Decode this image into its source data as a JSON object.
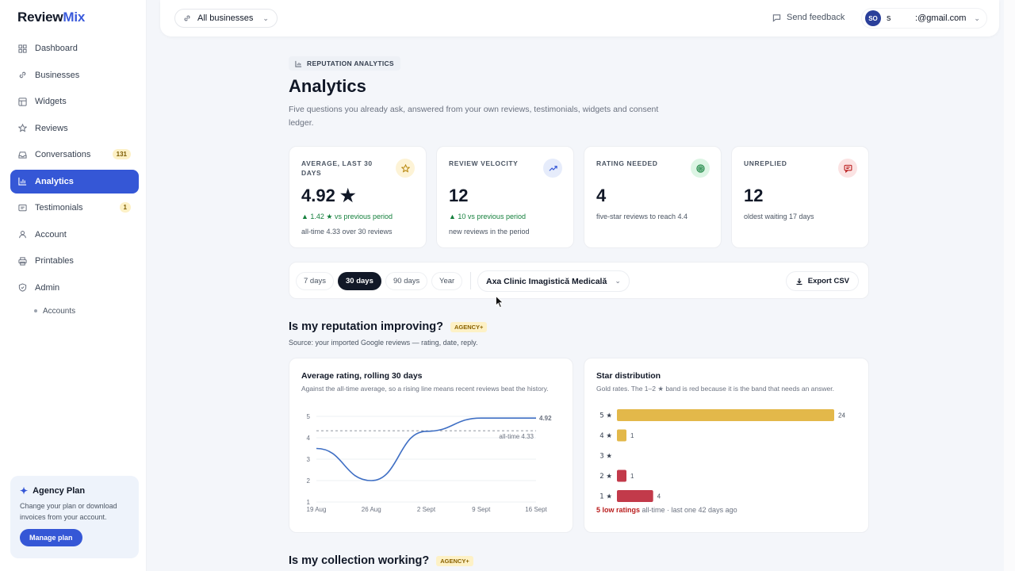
{
  "brand": {
    "part1": "Review",
    "part2": "Mix"
  },
  "sidebar": {
    "items": [
      {
        "label": "Dashboard",
        "icon": "grid-icon"
      },
      {
        "label": "Businesses",
        "icon": "link-icon"
      },
      {
        "label": "Widgets",
        "icon": "layout-icon"
      },
      {
        "label": "Reviews",
        "icon": "star-icon"
      },
      {
        "label": "Conversations",
        "icon": "inbox-icon",
        "badge": "131"
      },
      {
        "label": "Analytics",
        "icon": "bar-chart-icon",
        "active": true
      },
      {
        "label": "Testimonials",
        "icon": "quote-icon",
        "badge": "1"
      },
      {
        "label": "Account",
        "icon": "user-icon"
      },
      {
        "label": "Printables",
        "icon": "printer-icon"
      },
      {
        "label": "Admin",
        "icon": "shield-icon"
      }
    ],
    "sub_items": [
      {
        "label": "Accounts"
      }
    ],
    "plan": {
      "title": "Agency Plan",
      "text": "Change your plan or download invoices from your account.",
      "button": "Manage plan"
    }
  },
  "topbar": {
    "business_select": "All businesses",
    "feedback": "Send feedback",
    "user_initials": "SO",
    "user_email": "s          :@gmail.com"
  },
  "header": {
    "eyebrow": "REPUTATION ANALYTICS",
    "title": "Analytics",
    "description": "Five questions you already ask, answered from your own reviews, testimonials, widgets and consent ledger."
  },
  "kpis": [
    {
      "label": "AVERAGE, LAST 30 DAYS",
      "value": "4.92 ★",
      "trend": "▲ 1.42 ★ vs previous period",
      "sub": "all-time 4.33 over 30 reviews",
      "icon": "star-icon",
      "icon_bg": "#fdf3d6",
      "icon_color": "#b7860b"
    },
    {
      "label": "REVIEW VELOCITY",
      "value": "12",
      "trend": "▲ 10 vs previous period",
      "sub": "new reviews in the period",
      "icon": "trending-up-icon",
      "icon_bg": "#e6ecfb",
      "icon_color": "#3557d6"
    },
    {
      "label": "RATING NEEDED",
      "value": "4",
      "trend": "",
      "sub": "five-star reviews to reach 4.4",
      "icon": "target-icon",
      "icon_bg": "#dcf5e4",
      "icon_color": "#15803d"
    },
    {
      "label": "UNREPLIED",
      "value": "12",
      "trend": "",
      "sub": "oldest waiting 17 days",
      "icon": "message-icon",
      "icon_bg": "#fbe3e3",
      "icon_color": "#b91c1c"
    }
  ],
  "filters": {
    "ranges": [
      "7 days",
      "30 days",
      "90 days",
      "Year"
    ],
    "active_range": "30 days",
    "business": "Axa Clinic Imagistică Medicală",
    "export": "Export CSV"
  },
  "section1": {
    "title": "Is my reputation improving?",
    "tag": "AGENCY+",
    "source": "Source: your imported Google reviews — rating, date, reply."
  },
  "section2": {
    "title": "Is my collection working?",
    "tag": "AGENCY+"
  },
  "rating_card": {
    "title": "Average rating, rolling 30 days",
    "subtitle": "Against the all-time average, so a rising line means recent reviews beat the history."
  },
  "star_card": {
    "title": "Star distribution",
    "subtitle": "Gold rates. The 1–2 ★ band is red because it is the band that needs an answer.",
    "footer_strong": "5 low ratings",
    "footer_rest": " all-time · last one 42 days ago"
  },
  "chart_data": [
    {
      "type": "line",
      "title": "Average rating, rolling 30 days",
      "x": [
        "19 Aug",
        "26 Aug",
        "2 Sept",
        "9 Sept",
        "16 Sept"
      ],
      "points": [
        {
          "x": "19 Aug",
          "y": 3.5
        },
        {
          "x": "26 Aug",
          "y": 2.0
        },
        {
          "x": "2 Sept",
          "y": 4.3
        },
        {
          "x": "9 Sept",
          "y": 4.92
        },
        {
          "x": "16 Sept",
          "y": 4.92
        }
      ],
      "ylim": [
        1,
        5
      ],
      "yticks": [
        1,
        2,
        3,
        4,
        5
      ],
      "end_label": "4.92",
      "reference": {
        "value": 4.33,
        "label": "all-time 4.33"
      },
      "grid": true,
      "color": "#3f6fc4"
    },
    {
      "type": "bar",
      "orientation": "horizontal",
      "title": "Star distribution",
      "categories": [
        "5 ★",
        "4 ★",
        "3 ★",
        "2 ★",
        "1 ★"
      ],
      "values": [
        24,
        1,
        0,
        1,
        4
      ],
      "colors": [
        "#e3b84a",
        "#e3b84a",
        "#e3b84a",
        "#c23a4a",
        "#c23a4a"
      ],
      "xlim": [
        0,
        24
      ]
    }
  ]
}
